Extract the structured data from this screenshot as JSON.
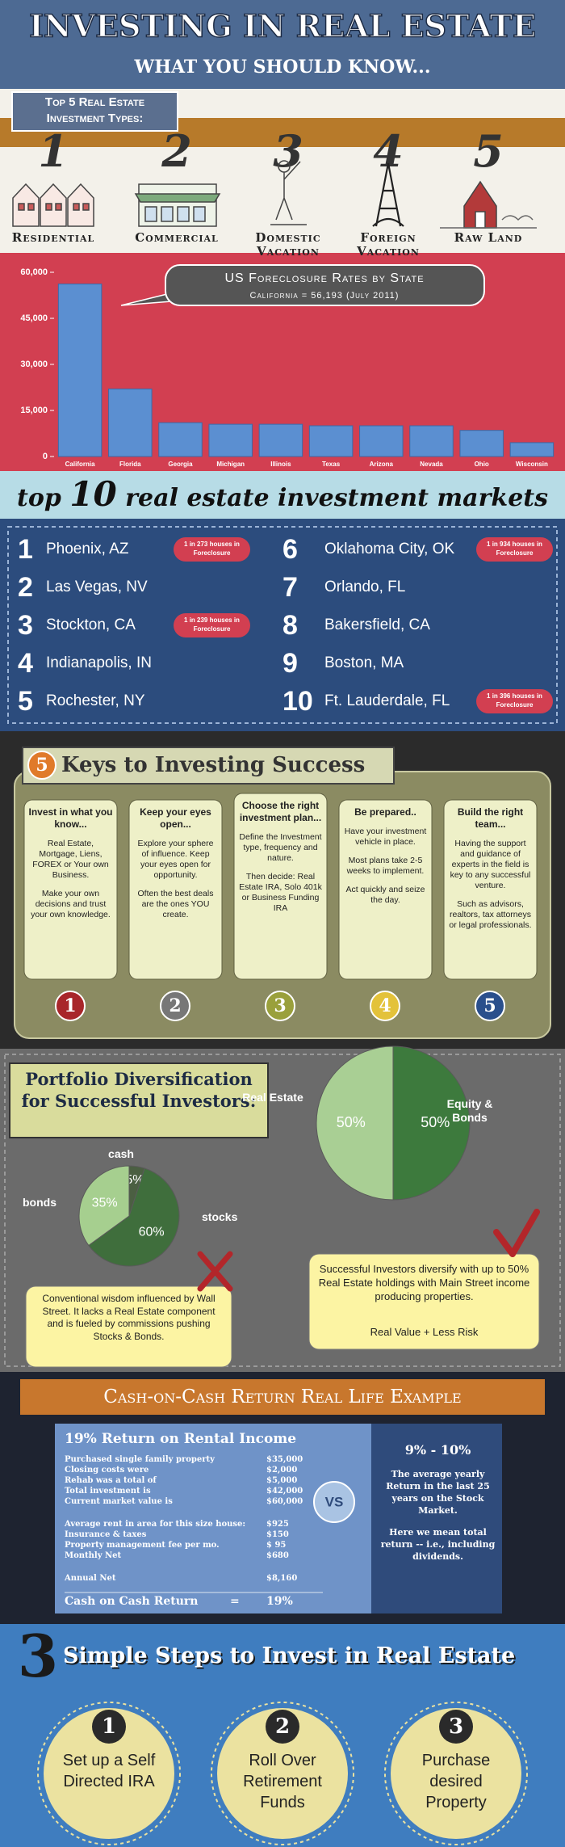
{
  "header": {
    "title": "INVESTING IN REAL ESTATE",
    "subtitle": "WHAT YOU SHOULD KNOW..."
  },
  "investment_types": {
    "title": "Top 5 Real Estate Investment Types:",
    "items": [
      {
        "number": "1",
        "label": "Residential"
      },
      {
        "number": "2",
        "label": "Commercial"
      },
      {
        "number": "3",
        "label": "Domestic Vacation"
      },
      {
        "number": "4",
        "label": "Foreign Vacation"
      },
      {
        "number": "5",
        "label": "Raw Land"
      }
    ]
  },
  "chart_data": [
    {
      "type": "bar",
      "title": "US Foreclosure Rates by State",
      "subtitle": "California = 56,193 (July 2011)",
      "categories": [
        "California",
        "Florida",
        "Georgia",
        "Michigan",
        "Illinois",
        "Texas",
        "Arizona",
        "Nevada",
        "Ohio",
        "Wisconsin"
      ],
      "values": [
        56193,
        22000,
        11000,
        10500,
        10500,
        10000,
        10000,
        10000,
        8500,
        4500
      ],
      "color": "#5b8fd1",
      "ylim": [
        0,
        60000
      ],
      "yticks": [
        0,
        {
          "value": 15000,
          "label": "15,000"
        },
        {
          "value": 30000,
          "label": "30,000"
        },
        {
          "value": 45000,
          "label": "45,000"
        },
        {
          "value": 60000,
          "label": "60,000"
        }
      ]
    },
    {
      "type": "pie",
      "categories": [
        "cash",
        "stocks",
        "bonds"
      ],
      "values": [
        5,
        60,
        35
      ],
      "value_labels": [
        "5%",
        "60%",
        "35%"
      ],
      "colors": [
        "#4b5f42",
        "#3f6e3c",
        "#a6cf8f"
      ]
    },
    {
      "type": "pie",
      "categories": [
        "Real Estate",
        "Equity & Bonds"
      ],
      "values": [
        50,
        50
      ],
      "value_labels": [
        "50%",
        "50%"
      ],
      "colors": [
        "#a9cf94",
        "#3d7a3d"
      ]
    }
  ],
  "top_markets": {
    "title_prefix": "top",
    "title_number": "10",
    "title_suffix": "real estate investment markets",
    "items": [
      {
        "number": "1",
        "city": "Phoenix, AZ",
        "note": "1 in 273 houses in Foreclosure"
      },
      {
        "number": "2",
        "city": "Las Vegas, NV"
      },
      {
        "number": "3",
        "city": "Stockton, CA",
        "note": "1 in 239 houses in Foreclosure"
      },
      {
        "number": "4",
        "city": "Indianapolis, IN"
      },
      {
        "number": "5",
        "city": "Rochester, NY"
      },
      {
        "number": "6",
        "city": "Oklahoma City, OK",
        "note": "1 in 934 houses in Foreclosure"
      },
      {
        "number": "7",
        "city": "Orlando, FL"
      },
      {
        "number": "8",
        "city": "Bakersfield, CA"
      },
      {
        "number": "9",
        "city": "Boston, MA"
      },
      {
        "number": "10",
        "city": "Ft. Lauderdale, FL",
        "note": "1 in 396 houses in Foreclosure"
      }
    ]
  },
  "keys": {
    "number": "5",
    "title": "Keys to Investing Success",
    "cards": [
      {
        "number": "1",
        "heading": "Invest in what you know...",
        "paragraphs": [
          "Real Estate, Mortgage, Liens, FOREX or Your own Business.",
          "Make your own decisions and trust your own knowledge."
        ]
      },
      {
        "number": "2",
        "heading": "Keep your eyes open...",
        "paragraphs": [
          "Explore your sphere of influence. Keep your eyes open for opportunity.",
          "Often the best deals are the ones YOU create."
        ]
      },
      {
        "number": "3",
        "heading": "Choose the right investment plan...",
        "paragraphs": [
          "Define the Investment type, frequency and nature.",
          "Then decide: Real Estate IRA, Solo 401k or Business Funding IRA"
        ]
      },
      {
        "number": "4",
        "heading": "Be prepared..",
        "paragraphs": [
          "Have your investment vehicle in place.",
          "Most plans take 2-5 weeks to implement.",
          "Act quickly and seize the day."
        ]
      },
      {
        "number": "5",
        "heading": "Build the right team...",
        "paragraphs": [
          "Having the support and guidance of experts in the field is key to any successful venture.",
          "Such as advisors, realtors, tax attorneys or legal professionals."
        ]
      }
    ]
  },
  "portfolio": {
    "title": "Portfolio Diversification for Successful Investors:",
    "left_note": "Conventional wisdom influenced by Wall Street. It lacks a Real Estate component and is fueled by commissions pushing Stocks & Bonds.",
    "right_note": "Successful Investors diversify with up to 50% Real Estate holdings with Main Street income producing properties.",
    "right_note_emphasis": "Real Value + Less Risk"
  },
  "cash_on_cash": {
    "title": "Cash-on-Cash Return Real Life Example",
    "table_title": "19% Return on Rental Income",
    "row_groups": [
      [
        [
          "Purchased single family property",
          "$35,000"
        ],
        [
          "Closing costs were",
          "$2,000"
        ],
        [
          "Rehab was a total of",
          "$5,000"
        ],
        [
          "Total investment is",
          "$42,000"
        ],
        [
          "Current market value is",
          "$60,000"
        ]
      ],
      [
        [
          "Average rent in area for this size house:",
          "$925"
        ],
        [
          "Insurance & taxes",
          "$150"
        ],
        [
          "Property management fee per mo.",
          "$ 95"
        ],
        [
          "Monthly Net",
          "$680"
        ]
      ],
      [
        [
          "Annual Net",
          "$8,160"
        ]
      ]
    ],
    "result_row": [
      "Cash on Cash Return",
      "=",
      "19%"
    ],
    "vs": "VS",
    "comparison_title": "9% - 10%",
    "comparison_paragraphs": [
      "The average yearly Return in the last 25 years on the Stock Market.",
      "Here we mean total return -- i.e., including dividends."
    ]
  },
  "steps": {
    "number": "3",
    "title": "Simple Steps to Invest in Real Estate",
    "items": [
      {
        "number": "1",
        "text": "Set up a Self Directed IRA"
      },
      {
        "number": "2",
        "text": "Roll Over Retirement Funds"
      },
      {
        "number": "3",
        "text": "Purchase desired Property"
      }
    ]
  }
}
